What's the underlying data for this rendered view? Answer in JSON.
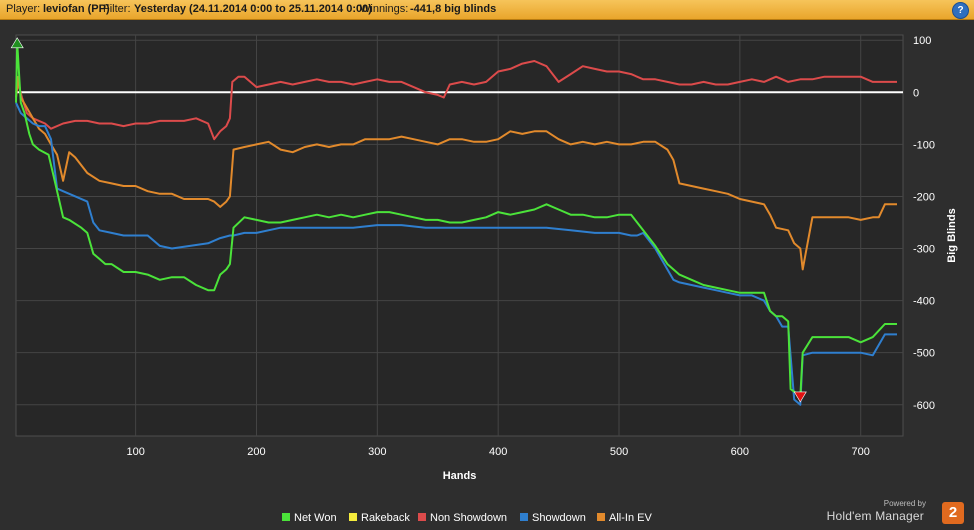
{
  "header": {
    "player_label": "Player:",
    "player_value": "leviofan (PP)",
    "filter_label": "Filter:",
    "filter_value": "Yesterday (24.11.2014 0:00 to 25.11.2014 0:00)",
    "winnings_label": "Winnings:",
    "winnings_value": "-441,8 big blinds",
    "help_glyph": "?"
  },
  "branding": {
    "powered_by": "Powered by",
    "product": "Hold'em Manager",
    "logo_text": "2"
  },
  "chart_data": {
    "type": "line",
    "xlabel": "Hands",
    "ylabel": "Big Blinds",
    "xlim": [
      1,
      735
    ],
    "ylim": [
      -660,
      110
    ],
    "x_ticks": [
      100,
      200,
      300,
      400,
      500,
      600,
      700
    ],
    "y_ticks": [
      100,
      0,
      -100,
      -200,
      -300,
      -400,
      -500,
      -600
    ],
    "grid": true,
    "zero_line": true,
    "legend_position": "bottom",
    "markers": [
      {
        "type": "max",
        "x": 2,
        "y": 95,
        "color": "#1f8f1f"
      },
      {
        "type": "min",
        "x": 650,
        "y": -585,
        "color": "#e01010"
      }
    ],
    "series": [
      {
        "name": "Net Won",
        "color": "#4be33a",
        "x": [
          1,
          2,
          5,
          8,
          12,
          15,
          20,
          28,
          32,
          40,
          45,
          55,
          60,
          65,
          70,
          75,
          80,
          90,
          100,
          110,
          120,
          130,
          140,
          150,
          160,
          165,
          170,
          175,
          178,
          181,
          190,
          200,
          210,
          220,
          230,
          240,
          250,
          260,
          270,
          280,
          290,
          300,
          310,
          320,
          330,
          340,
          350,
          360,
          370,
          380,
          390,
          400,
          410,
          420,
          430,
          440,
          450,
          460,
          470,
          480,
          490,
          500,
          510,
          520,
          530,
          540,
          550,
          560,
          570,
          580,
          590,
          600,
          610,
          620,
          625,
          630,
          635,
          640,
          642,
          645,
          648,
          650,
          652,
          660,
          670,
          680,
          690,
          700,
          710,
          720,
          730
        ],
        "y": [
          -20,
          95,
          -20,
          -40,
          -80,
          -100,
          -110,
          -120,
          -160,
          -240,
          -245,
          -260,
          -270,
          -310,
          -320,
          -330,
          -330,
          -345,
          -345,
          -350,
          -360,
          -355,
          -355,
          -370,
          -380,
          -380,
          -350,
          -340,
          -330,
          -260,
          -240,
          -245,
          -250,
          -250,
          -245,
          -240,
          -235,
          -240,
          -235,
          -240,
          -235,
          -230,
          -230,
          -235,
          -240,
          -245,
          -245,
          -250,
          -250,
          -245,
          -240,
          -230,
          -235,
          -230,
          -225,
          -215,
          -225,
          -235,
          -235,
          -240,
          -240,
          -235,
          -235,
          -265,
          -295,
          -330,
          -350,
          -360,
          -370,
          -375,
          -380,
          -385,
          -385,
          -385,
          -420,
          -430,
          -430,
          -440,
          -570,
          -575,
          -580,
          -585,
          -500,
          -470,
          -470,
          -470,
          -470,
          -480,
          -470,
          -445,
          -445
        ]
      },
      {
        "name": "Rakeback",
        "color": "#f5ec3c",
        "x": [
          1,
          735
        ],
        "y": [
          0,
          0
        ]
      },
      {
        "name": "Non Showdown",
        "color": "#dc4b4b",
        "x": [
          1,
          3,
          6,
          10,
          15,
          20,
          25,
          30,
          40,
          50,
          60,
          70,
          80,
          90,
          100,
          110,
          120,
          130,
          140,
          150,
          160,
          165,
          170,
          175,
          178,
          180,
          185,
          190,
          200,
          210,
          220,
          230,
          240,
          250,
          260,
          270,
          280,
          290,
          300,
          310,
          320,
          330,
          340,
          350,
          355,
          360,
          370,
          380,
          390,
          400,
          410,
          420,
          430,
          440,
          450,
          460,
          470,
          480,
          490,
          500,
          510,
          520,
          530,
          540,
          550,
          560,
          570,
          580,
          590,
          600,
          610,
          620,
          630,
          640,
          650,
          660,
          670,
          680,
          690,
          700,
          710,
          720,
          730
        ],
        "y": [
          0,
          15,
          -10,
          -40,
          -50,
          -55,
          -60,
          -70,
          -60,
          -55,
          -55,
          -60,
          -60,
          -65,
          -60,
          -60,
          -55,
          -55,
          -55,
          -50,
          -60,
          -90,
          -75,
          -65,
          -50,
          20,
          30,
          30,
          10,
          15,
          20,
          15,
          20,
          25,
          20,
          20,
          15,
          20,
          25,
          20,
          20,
          10,
          0,
          -5,
          -10,
          15,
          20,
          15,
          20,
          40,
          45,
          55,
          60,
          50,
          20,
          35,
          50,
          45,
          40,
          40,
          35,
          25,
          25,
          20,
          15,
          15,
          20,
          15,
          15,
          20,
          25,
          20,
          30,
          20,
          25,
          25,
          30,
          30,
          30,
          30,
          20,
          20,
          20
        ]
      },
      {
        "name": "Showdown",
        "color": "#2f7fcf",
        "x": [
          1,
          5,
          15,
          20,
          25,
          30,
          35,
          40,
          60,
          65,
          70,
          80,
          90,
          100,
          110,
          120,
          130,
          160,
          170,
          178,
          181,
          190,
          200,
          220,
          240,
          260,
          280,
          300,
          320,
          340,
          360,
          380,
          400,
          420,
          440,
          460,
          480,
          500,
          510,
          515,
          520,
          530,
          540,
          545,
          550,
          560,
          570,
          580,
          590,
          600,
          610,
          620,
          625,
          630,
          635,
          640,
          645,
          650,
          652,
          660,
          680,
          700,
          710,
          720,
          730
        ],
        "y": [
          -20,
          -40,
          -60,
          -65,
          -65,
          -90,
          -185,
          -190,
          -210,
          -250,
          -265,
          -270,
          -275,
          -275,
          -275,
          -295,
          -300,
          -290,
          -280,
          -275,
          -275,
          -270,
          -270,
          -260,
          -260,
          -260,
          -260,
          -255,
          -255,
          -260,
          -260,
          -260,
          -260,
          -260,
          -260,
          -265,
          -270,
          -270,
          -275,
          -275,
          -270,
          -300,
          -340,
          -360,
          -365,
          -370,
          -375,
          -380,
          -385,
          -390,
          -390,
          -400,
          -420,
          -430,
          -450,
          -450,
          -590,
          -600,
          -505,
          -500,
          -500,
          -500,
          -505,
          -465,
          -465
        ]
      },
      {
        "name": "All-In EV",
        "color": "#e28a2c",
        "x": [
          1,
          3,
          5,
          10,
          15,
          20,
          25,
          30,
          35,
          40,
          45,
          50,
          60,
          70,
          80,
          90,
          100,
          110,
          120,
          130,
          140,
          150,
          160,
          165,
          170,
          175,
          178,
          181,
          190,
          200,
          210,
          220,
          230,
          240,
          250,
          260,
          270,
          280,
          290,
          300,
          310,
          320,
          330,
          340,
          350,
          360,
          370,
          380,
          390,
          400,
          410,
          420,
          430,
          440,
          450,
          460,
          470,
          480,
          490,
          500,
          510,
          520,
          530,
          540,
          545,
          550,
          560,
          570,
          580,
          590,
          600,
          610,
          620,
          625,
          630,
          640,
          645,
          650,
          652,
          660,
          670,
          680,
          690,
          700,
          710,
          715,
          720,
          730
        ],
        "y": [
          -10,
          30,
          -10,
          -30,
          -50,
          -70,
          -80,
          -100,
          -120,
          -170,
          -115,
          -125,
          -155,
          -170,
          -175,
          -180,
          -180,
          -190,
          -195,
          -195,
          -205,
          -205,
          -205,
          -210,
          -220,
          -210,
          -200,
          -110,
          -105,
          -100,
          -95,
          -110,
          -115,
          -105,
          -100,
          -105,
          -100,
          -100,
          -90,
          -90,
          -90,
          -85,
          -90,
          -95,
          -100,
          -90,
          -90,
          -95,
          -95,
          -90,
          -75,
          -80,
          -75,
          -75,
          -90,
          -100,
          -95,
          -100,
          -95,
          -100,
          -100,
          -95,
          -95,
          -110,
          -130,
          -175,
          -180,
          -185,
          -190,
          -195,
          -205,
          -210,
          -215,
          -235,
          -260,
          -265,
          -290,
          -300,
          -340,
          -240,
          -240,
          -240,
          -240,
          -245,
          -240,
          -240,
          -215,
          -215
        ]
      }
    ]
  }
}
